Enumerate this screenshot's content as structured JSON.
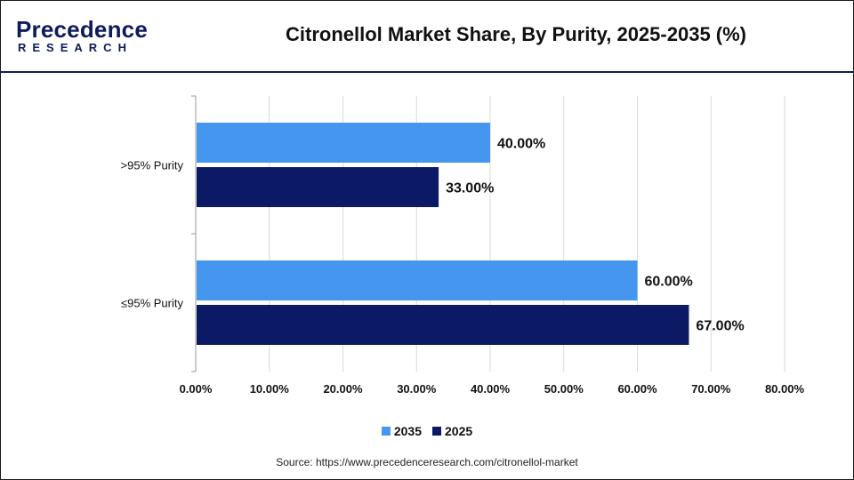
{
  "header": {
    "logo_text": "Precedence",
    "logo_sub": "RESEARCH",
    "title": "Citronellol Market Share, By Purity, 2025-2035 (%)"
  },
  "colors": {
    "series_2035": "#4596ee",
    "series_2025": "#0c1a66",
    "brand": "#0f1b5c"
  },
  "chart_data": {
    "type": "bar",
    "orientation": "horizontal",
    "title": "Citronellol Market Share, By Purity, 2025-2035 (%)",
    "categories": [
      ">95% Purity",
      "≤95% Purity"
    ],
    "series": [
      {
        "name": "2035",
        "values": [
          40.0,
          60.0
        ],
        "labels": [
          "40.00%",
          "60.00%"
        ]
      },
      {
        "name": "2025",
        "values": [
          33.0,
          67.0
        ],
        "labels": [
          "33.00%",
          "67.00%"
        ]
      }
    ],
    "xlim": [
      0,
      80
    ],
    "xticks": [
      "0.00%",
      "10.00%",
      "20.00%",
      "30.00%",
      "40.00%",
      "50.00%",
      "60.00%",
      "70.00%",
      "80.00%"
    ],
    "grid": true,
    "legend_position": "bottom"
  },
  "legend": {
    "items": [
      {
        "label": "2035"
      },
      {
        "label": "2025"
      }
    ]
  },
  "footer": {
    "source": "Source: https://www.precedenceresearch.com/citronellol-market"
  }
}
